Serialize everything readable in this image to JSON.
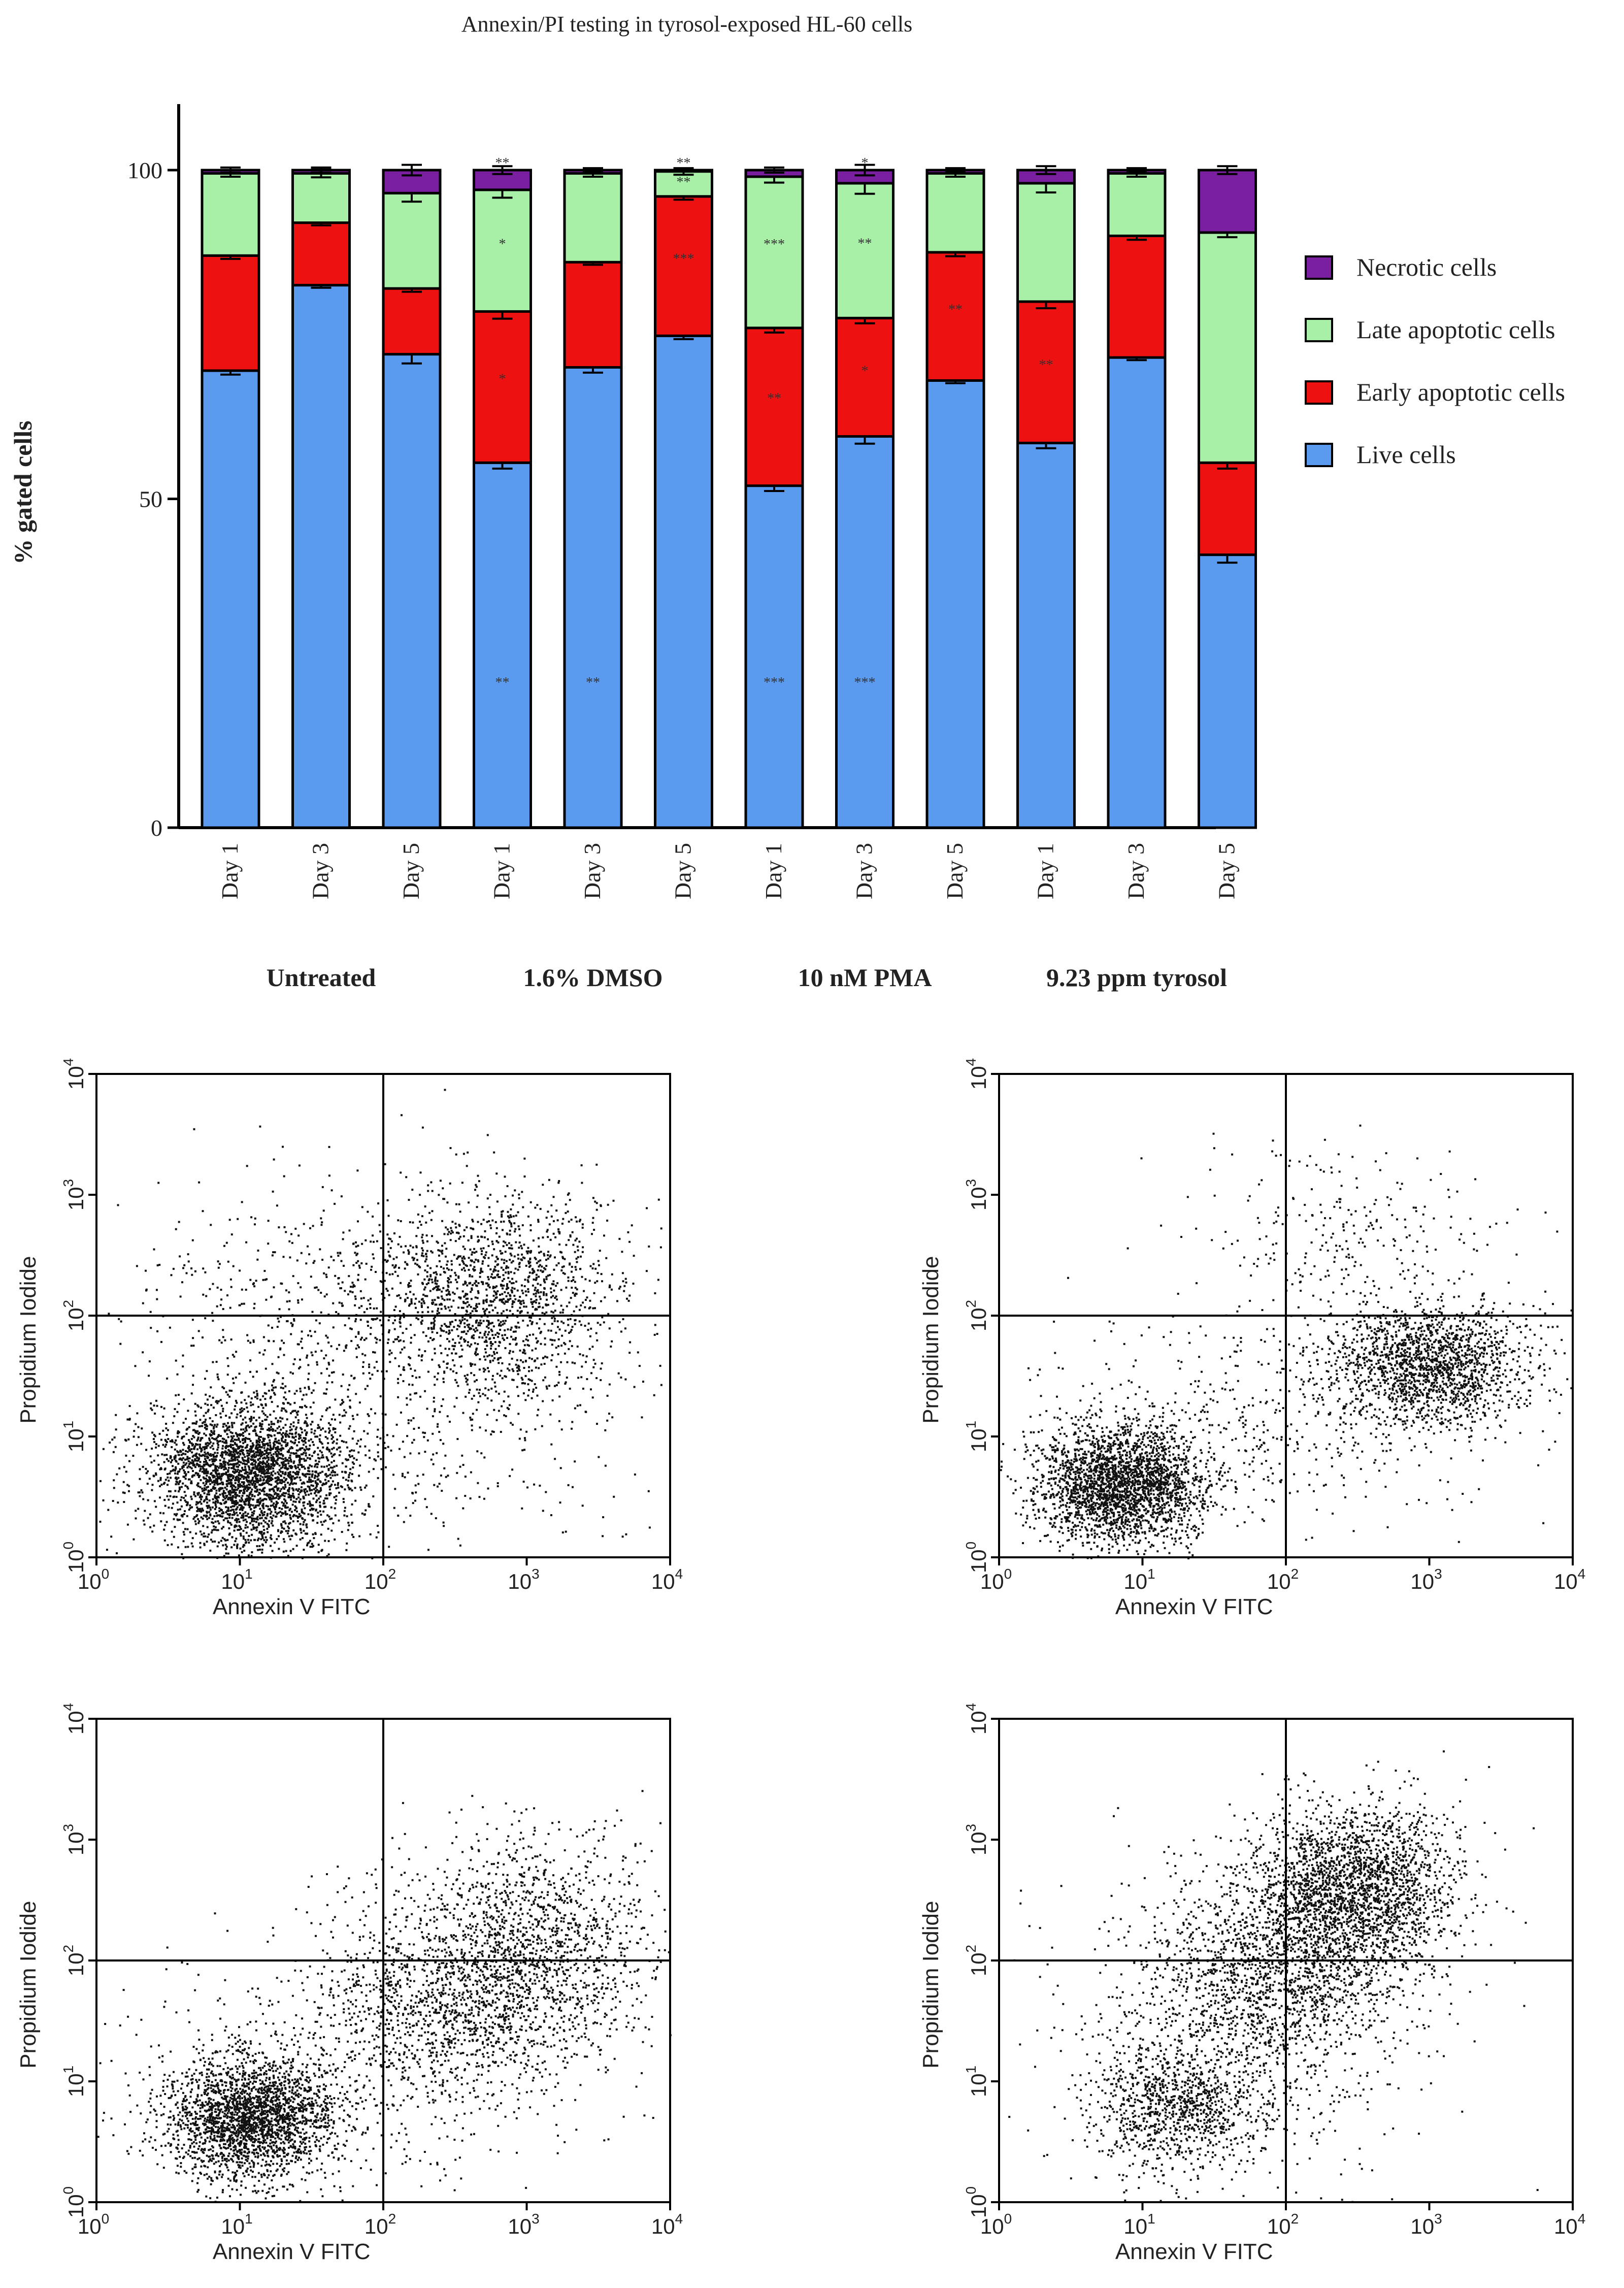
{
  "chart_data": [
    {
      "type": "bar",
      "stacked": true,
      "title": "Annexin/PI testing in tyrosol-exposed HL-60 cells",
      "ylabel": "% gated cells",
      "ylim": [
        0,
        100
      ],
      "yticks": [
        0,
        50,
        100
      ],
      "categories": [
        "Day 1",
        "Day 3",
        "Day 5",
        "Day 1",
        "Day 3",
        "Day 5",
        "Day 1",
        "Day 3",
        "Day 5",
        "Day 1",
        "Day 3",
        "Day 5"
      ],
      "groups": [
        {
          "label": "Untreated",
          "indices": [
            0,
            1,
            2
          ]
        },
        {
          "label": "1.6% DMSO",
          "indices": [
            3,
            4,
            5
          ]
        },
        {
          "label": "10 nM PMA",
          "indices": [
            6,
            7,
            8
          ]
        },
        {
          "label": "9.23 ppm tyrosol",
          "indices": [
            9,
            10,
            11
          ]
        }
      ],
      "legend_position": "right",
      "series": [
        {
          "name": "Live cells",
          "color": "#5b9bef",
          "values": [
            69.5,
            82.5,
            72,
            55.5,
            70,
            74.8,
            52,
            59.5,
            68,
            58.5,
            71.5,
            41.5
          ],
          "errors": [
            0.6,
            0.4,
            1.4,
            0.9,
            0.8,
            0.5,
            0.8,
            1.1,
            0.4,
            0.8,
            0.4,
            1.2
          ]
        },
        {
          "name": "Early apoptotic cells",
          "color": "#ee1111",
          "values": [
            17.5,
            9.5,
            10,
            23,
            16,
            21.2,
            24,
            18,
            19.5,
            21.5,
            18.5,
            14
          ],
          "errors": [
            0.5,
            0.4,
            0.5,
            1.1,
            0.4,
            0.5,
            0.7,
            0.8,
            0.6,
            1.0,
            0.6,
            0.9
          ]
        },
        {
          "name": "Late apoptotic cells",
          "color": "#a8f0a8",
          "values": [
            12.5,
            7.5,
            14.5,
            18.5,
            13.5,
            3.8,
            23,
            20.5,
            12,
            18,
            9.5,
            35
          ],
          "errors": [
            0.5,
            0.6,
            1.3,
            1.2,
            0.5,
            0.5,
            0.9,
            1.6,
            0.5,
            1.4,
            0.5,
            0.7
          ]
        },
        {
          "name": "Necrotic cells",
          "color": "#7a1fa0",
          "values": [
            0.5,
            0.5,
            3.5,
            3.0,
            0.5,
            0.2,
            1.0,
            2.0,
            0.5,
            2.0,
            0.5,
            9.5
          ],
          "errors": [
            0.4,
            0.4,
            0.8,
            0.6,
            0.3,
            0.2,
            0.4,
            0.8,
            0.3,
            0.6,
            0.3,
            0.6
          ]
        }
      ],
      "annotations": [
        {
          "bar": 3,
          "series": 0,
          "text": "**"
        },
        {
          "bar": 4,
          "series": 0,
          "text": "**"
        },
        {
          "bar": 6,
          "series": 0,
          "text": "***"
        },
        {
          "bar": 7,
          "series": 0,
          "text": "***"
        },
        {
          "bar": 3,
          "series": 1,
          "text": "*"
        },
        {
          "bar": 5,
          "series": 1,
          "text": "***"
        },
        {
          "bar": 6,
          "series": 1,
          "text": "**"
        },
        {
          "bar": 7,
          "series": 1,
          "text": "*"
        },
        {
          "bar": 8,
          "series": 1,
          "text": "**"
        },
        {
          "bar": 9,
          "series": 1,
          "text": "**"
        },
        {
          "bar": 3,
          "series": 2,
          "text": "*"
        },
        {
          "bar": 5,
          "series": 2,
          "text": "**"
        },
        {
          "bar": 6,
          "series": 2,
          "text": "***"
        },
        {
          "bar": 7,
          "series": 2,
          "text": "**"
        },
        {
          "bar": 3,
          "series": 3,
          "text": "**"
        },
        {
          "bar": 5,
          "series": 3,
          "text": "**"
        },
        {
          "bar": 7,
          "series": 3,
          "text": "*"
        }
      ]
    },
    {
      "type": "scatter",
      "panel": "top-left",
      "xlabel": "Annexin V FITC",
      "ylabel": "Propidium Iodide",
      "xscale": "log",
      "yscale": "log",
      "xlim": [
        1,
        10000
      ],
      "ylim": [
        1,
        10000
      ],
      "x_tick_exponents": [
        0,
        1,
        2,
        3,
        4
      ],
      "y_tick_exponents": [
        0,
        1,
        2,
        3,
        4
      ],
      "quadrant_gates": {
        "x": 100,
        "y": 100
      },
      "populations": [
        {
          "center": [
            12,
            5
          ],
          "spread": [
            0.35,
            0.3
          ],
          "count": 3000
        },
        {
          "center": [
            600,
            150
          ],
          "spread": [
            0.45,
            0.45
          ],
          "count": 1500
        },
        {
          "center": [
            60,
            150
          ],
          "spread": [
            0.8,
            0.5
          ],
          "count": 600
        },
        {
          "center": [
            80,
            10
          ],
          "spread": [
            1.0,
            0.7
          ],
          "count": 500
        }
      ]
    },
    {
      "type": "scatter",
      "panel": "top-right",
      "xlabel": "Annexin V FITC",
      "ylabel": "Propidium Iodide",
      "xscale": "log",
      "yscale": "log",
      "xlim": [
        1,
        10000
      ],
      "ylim": [
        1,
        10000
      ],
      "x_tick_exponents": [
        0,
        1,
        2,
        3,
        4
      ],
      "y_tick_exponents": [
        0,
        1,
        2,
        3,
        4
      ],
      "quadrant_gates": {
        "x": 100,
        "y": 100
      },
      "populations": [
        {
          "center": [
            7,
            4
          ],
          "spread": [
            0.3,
            0.25
          ],
          "count": 2600
        },
        {
          "center": [
            1000,
            40
          ],
          "spread": [
            0.35,
            0.25
          ],
          "count": 1700
        },
        {
          "center": [
            300,
            500
          ],
          "spread": [
            0.5,
            0.35
          ],
          "count": 250
        },
        {
          "center": [
            100,
            15
          ],
          "spread": [
            0.8,
            0.5
          ],
          "count": 500
        }
      ]
    },
    {
      "type": "scatter",
      "panel": "bottom-left",
      "xlabel": "Annexin V FITC",
      "ylabel": "Propidium Iodide",
      "xscale": "log",
      "yscale": "log",
      "xlim": [
        1,
        10000
      ],
      "ylim": [
        1,
        10000
      ],
      "x_tick_exponents": [
        0,
        1,
        2,
        3,
        4
      ],
      "y_tick_exponents": [
        0,
        1,
        2,
        3,
        4
      ],
      "quadrant_gates": {
        "x": 100,
        "y": 100
      },
      "populations": [
        {
          "center": [
            12,
            5
          ],
          "spread": [
            0.3,
            0.25
          ],
          "count": 2400
        },
        {
          "center": [
            1000,
            150
          ],
          "spread": [
            0.45,
            0.45
          ],
          "count": 1400
        },
        {
          "center": [
            300,
            40
          ],
          "spread": [
            0.5,
            0.35
          ],
          "count": 1000
        },
        {
          "center": [
            60,
            15
          ],
          "spread": [
            0.8,
            0.6
          ],
          "count": 600
        }
      ]
    },
    {
      "type": "scatter",
      "panel": "bottom-right",
      "xlabel": "Annexin V FITC",
      "ylabel": "Propidium Iodide",
      "xscale": "log",
      "yscale": "log",
      "xlim": [
        1,
        10000
      ],
      "ylim": [
        1,
        10000
      ],
      "x_tick_exponents": [
        0,
        1,
        2,
        3,
        4
      ],
      "y_tick_exponents": [
        0,
        1,
        2,
        3,
        4
      ],
      "quadrant_gates": {
        "x": 100,
        "y": 100
      },
      "populations": [
        {
          "center": [
            300,
            400
          ],
          "spread": [
            0.35,
            0.35
          ],
          "count": 2200
        },
        {
          "center": [
            80,
            80
          ],
          "spread": [
            0.45,
            0.45
          ],
          "count": 1600
        },
        {
          "center": [
            18,
            6
          ],
          "spread": [
            0.3,
            0.25
          ],
          "count": 1000
        },
        {
          "center": [
            40,
            30
          ],
          "spread": [
            0.8,
            0.7
          ],
          "count": 500
        }
      ]
    }
  ]
}
